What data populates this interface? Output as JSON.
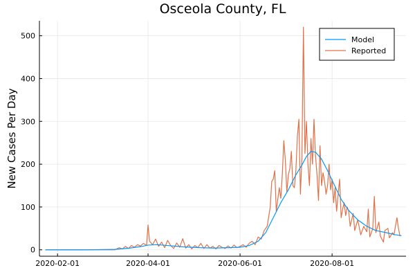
{
  "chart_data": {
    "type": "line",
    "title": "Osceola County, FL",
    "xlabel": "",
    "ylabel": "New Cases Per Day",
    "x_axis_type": "date",
    "xlim": [
      "2020-01-20",
      "2020-09-19"
    ],
    "ylim": [
      -15,
      535
    ],
    "x_ticks": [
      "2020-02-01",
      "2020-04-01",
      "2020-06-01",
      "2020-08-01"
    ],
    "y_ticks": [
      0,
      100,
      200,
      300,
      400,
      500
    ],
    "grid": true,
    "legend_position": "top-right",
    "colors": {
      "model": "#009AFA",
      "reported": "#E26F46"
    },
    "series": [
      {
        "name": "Model",
        "color": "#009AFA",
        "points": [
          [
            "2020-01-24",
            0
          ],
          [
            "2020-02-20",
            0
          ],
          [
            "2020-03-10",
            1
          ],
          [
            "2020-03-20",
            4
          ],
          [
            "2020-03-28",
            8
          ],
          [
            "2020-04-01",
            11
          ],
          [
            "2020-04-07",
            12
          ],
          [
            "2020-04-14",
            10
          ],
          [
            "2020-04-24",
            7
          ],
          [
            "2020-05-05",
            5
          ],
          [
            "2020-05-15",
            4
          ],
          [
            "2020-05-25",
            5
          ],
          [
            "2020-06-01",
            6
          ],
          [
            "2020-06-07",
            10
          ],
          [
            "2020-06-13",
            20
          ],
          [
            "2020-06-18",
            40
          ],
          [
            "2020-06-23",
            75
          ],
          [
            "2020-06-28",
            110
          ],
          [
            "2020-07-03",
            140
          ],
          [
            "2020-07-08",
            175
          ],
          [
            "2020-07-12",
            198
          ],
          [
            "2020-07-15",
            218
          ],
          [
            "2020-07-18",
            230
          ],
          [
            "2020-07-21",
            228
          ],
          [
            "2020-07-25",
            212
          ],
          [
            "2020-07-29",
            185
          ],
          [
            "2020-08-02",
            155
          ],
          [
            "2020-08-07",
            118
          ],
          [
            "2020-08-12",
            92
          ],
          [
            "2020-08-18",
            70
          ],
          [
            "2020-08-24",
            55
          ],
          [
            "2020-08-30",
            45
          ],
          [
            "2020-09-06",
            40
          ],
          [
            "2020-09-12",
            35
          ],
          [
            "2020-09-16",
            33
          ]
        ]
      },
      {
        "name": "Reported",
        "color": "#E26F46",
        "points": [
          [
            "2020-01-24",
            0
          ],
          [
            "2020-03-10",
            0
          ],
          [
            "2020-03-13",
            5
          ],
          [
            "2020-03-15",
            2
          ],
          [
            "2020-03-17",
            8
          ],
          [
            "2020-03-19",
            3
          ],
          [
            "2020-03-21",
            10
          ],
          [
            "2020-03-23",
            6
          ],
          [
            "2020-03-25",
            12
          ],
          [
            "2020-03-27",
            9
          ],
          [
            "2020-03-29",
            15
          ],
          [
            "2020-03-31",
            10
          ],
          [
            "2020-04-01",
            58
          ],
          [
            "2020-04-02",
            20
          ],
          [
            "2020-04-04",
            12
          ],
          [
            "2020-04-06",
            25
          ],
          [
            "2020-04-08",
            8
          ],
          [
            "2020-04-10",
            18
          ],
          [
            "2020-04-12",
            5
          ],
          [
            "2020-04-14",
            22
          ],
          [
            "2020-04-16",
            10
          ],
          [
            "2020-04-18",
            3
          ],
          [
            "2020-04-20",
            16
          ],
          [
            "2020-04-22",
            6
          ],
          [
            "2020-04-24",
            26
          ],
          [
            "2020-04-26",
            4
          ],
          [
            "2020-04-28",
            12
          ],
          [
            "2020-04-30",
            2
          ],
          [
            "2020-05-02",
            10
          ],
          [
            "2020-05-04",
            5
          ],
          [
            "2020-05-06",
            15
          ],
          [
            "2020-05-08",
            3
          ],
          [
            "2020-05-10",
            12
          ],
          [
            "2020-05-12",
            4
          ],
          [
            "2020-05-14",
            8
          ],
          [
            "2020-05-16",
            2
          ],
          [
            "2020-05-18",
            10
          ],
          [
            "2020-05-20",
            6
          ],
          [
            "2020-05-22",
            3
          ],
          [
            "2020-05-24",
            9
          ],
          [
            "2020-05-26",
            4
          ],
          [
            "2020-05-28",
            11
          ],
          [
            "2020-05-30",
            5
          ],
          [
            "2020-06-01",
            8
          ],
          [
            "2020-06-03",
            12
          ],
          [
            "2020-06-05",
            6
          ],
          [
            "2020-06-07",
            15
          ],
          [
            "2020-06-09",
            20
          ],
          [
            "2020-06-11",
            12
          ],
          [
            "2020-06-13",
            30
          ],
          [
            "2020-06-15",
            25
          ],
          [
            "2020-06-17",
            45
          ],
          [
            "2020-06-19",
            55
          ],
          [
            "2020-06-21",
            100
          ],
          [
            "2020-06-22",
            160
          ],
          [
            "2020-06-23",
            165
          ],
          [
            "2020-06-24",
            185
          ],
          [
            "2020-06-25",
            90
          ],
          [
            "2020-06-27",
            145
          ],
          [
            "2020-06-28",
            120
          ],
          [
            "2020-06-29",
            175
          ],
          [
            "2020-06-30",
            255
          ],
          [
            "2020-07-01",
            210
          ],
          [
            "2020-07-02",
            135
          ],
          [
            "2020-07-03",
            175
          ],
          [
            "2020-07-04",
            190
          ],
          [
            "2020-07-05",
            230
          ],
          [
            "2020-07-06",
            150
          ],
          [
            "2020-07-07",
            145
          ],
          [
            "2020-07-08",
            185
          ],
          [
            "2020-07-09",
            265
          ],
          [
            "2020-07-10",
            305
          ],
          [
            "2020-07-11",
            130
          ],
          [
            "2020-07-12",
            215
          ],
          [
            "2020-07-13",
            520
          ],
          [
            "2020-07-14",
            225
          ],
          [
            "2020-07-15",
            300
          ],
          [
            "2020-07-16",
            200
          ],
          [
            "2020-07-17",
            150
          ],
          [
            "2020-07-18",
            260
          ],
          [
            "2020-07-19",
            200
          ],
          [
            "2020-07-20",
            305
          ],
          [
            "2020-07-21",
            220
          ],
          [
            "2020-07-22",
            175
          ],
          [
            "2020-07-23",
            115
          ],
          [
            "2020-07-24",
            243
          ],
          [
            "2020-07-25",
            150
          ],
          [
            "2020-07-26",
            180
          ],
          [
            "2020-07-27",
            160
          ],
          [
            "2020-07-28",
            130
          ],
          [
            "2020-07-29",
            150
          ],
          [
            "2020-07-30",
            200
          ],
          [
            "2020-07-31",
            140
          ],
          [
            "2020-08-01",
            165
          ],
          [
            "2020-08-02",
            110
          ],
          [
            "2020-08-03",
            145
          ],
          [
            "2020-08-04",
            90
          ],
          [
            "2020-08-05",
            130
          ],
          [
            "2020-08-06",
            165
          ],
          [
            "2020-08-07",
            75
          ],
          [
            "2020-08-08",
            95
          ],
          [
            "2020-08-09",
            110
          ],
          [
            "2020-08-10",
            80
          ],
          [
            "2020-08-11",
            100
          ],
          [
            "2020-08-12",
            90
          ],
          [
            "2020-08-13",
            55
          ],
          [
            "2020-08-15",
            85
          ],
          [
            "2020-08-16",
            45
          ],
          [
            "2020-08-18",
            70
          ],
          [
            "2020-08-20",
            35
          ],
          [
            "2020-08-22",
            55
          ],
          [
            "2020-08-24",
            42
          ],
          [
            "2020-08-25",
            95
          ],
          [
            "2020-08-26",
            30
          ],
          [
            "2020-08-28",
            50
          ],
          [
            "2020-08-29",
            125
          ],
          [
            "2020-08-30",
            40
          ],
          [
            "2020-09-01",
            65
          ],
          [
            "2020-09-02",
            32
          ],
          [
            "2020-09-04",
            18
          ],
          [
            "2020-09-05",
            45
          ],
          [
            "2020-09-07",
            50
          ],
          [
            "2020-09-08",
            28
          ],
          [
            "2020-09-10",
            40
          ],
          [
            "2020-09-11",
            35
          ],
          [
            "2020-09-13",
            75
          ],
          [
            "2020-09-14",
            50
          ],
          [
            "2020-09-15",
            32
          ]
        ]
      }
    ]
  }
}
